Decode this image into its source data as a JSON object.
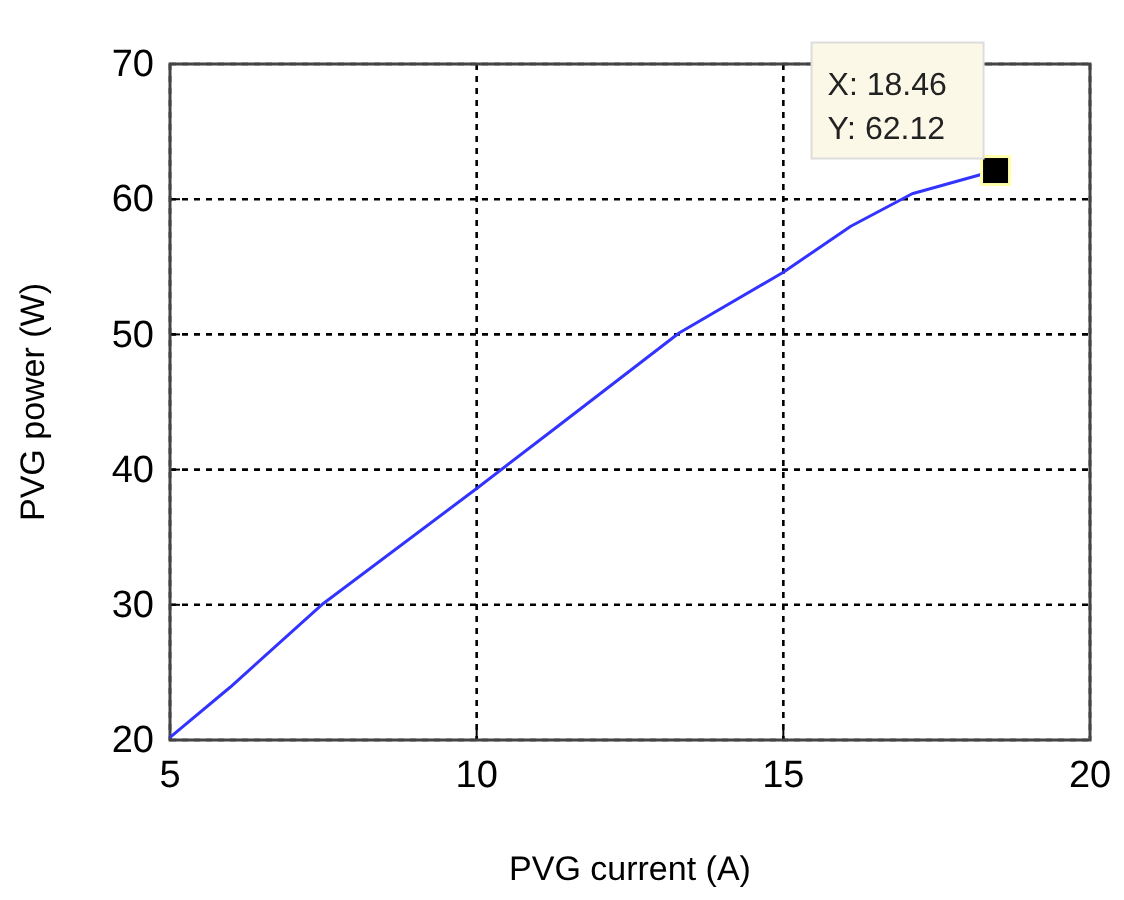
{
  "chart_data": {
    "type": "line",
    "xlabel": "PVG current (A)",
    "ylabel": "PVG power (W)",
    "x": [
      5,
      5.98,
      7.5,
      10,
      11.35,
      13.3,
      15,
      16.1,
      17.1,
      18.46
    ],
    "series": [
      {
        "color": "#3333ff",
        "values": [
          20.2,
          23.9,
          30.1,
          38.6,
          43.3,
          50.1,
          54.6,
          58,
          60.4,
          62.12
        ]
      }
    ],
    "xlim": [
      5,
      20
    ],
    "xticks": [
      5,
      10,
      15,
      20
    ],
    "ylim": [
      20,
      70
    ],
    "yticks": [
      20,
      30,
      40,
      50,
      60,
      70
    ],
    "grid": true,
    "marker": "none",
    "line_style": "solid",
    "annotations": [
      {
        "text": "X: 18.46\nY: 62.12",
        "x": 18.46,
        "y": 62.12
      }
    ]
  }
}
